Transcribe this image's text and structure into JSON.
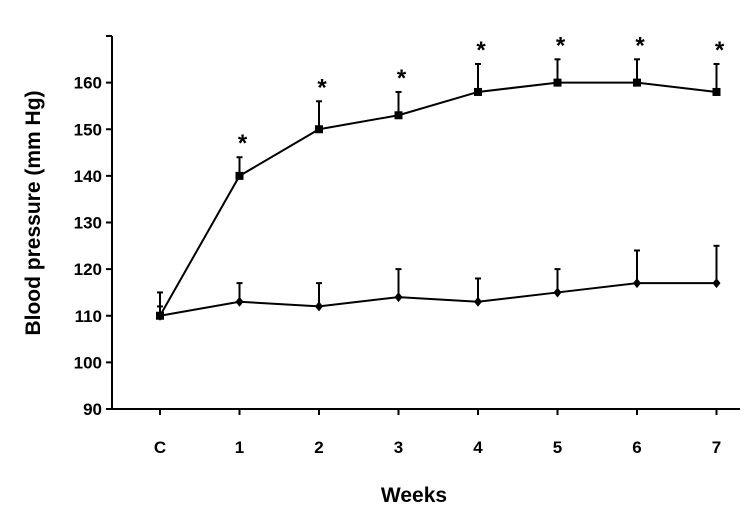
{
  "chart_data": {
    "type": "line",
    "title": "",
    "xlabel": "Weeks",
    "ylabel": "Blood pressure (mm Hg)",
    "categories": [
      "C",
      "1",
      "2",
      "3",
      "4",
      "5",
      "6",
      "7"
    ],
    "ylim": [
      90,
      170
    ],
    "yticks": [
      "90",
      "100",
      "110",
      "120",
      "130",
      "140",
      "150",
      "160"
    ],
    "grid": false,
    "legend": "none",
    "significance_marker": "*",
    "series": [
      {
        "marker": "square",
        "values": [
          110,
          140,
          150,
          153,
          158,
          160,
          160,
          158
        ],
        "error": [
          2,
          4,
          6,
          5,
          6,
          5,
          5,
          6
        ],
        "significant": [
          false,
          true,
          true,
          true,
          true,
          true,
          true,
          true
        ]
      },
      {
        "marker": "diamond",
        "values": [
          110,
          113,
          112,
          114,
          113,
          115,
          117,
          117
        ],
        "error": [
          5,
          4,
          5,
          6,
          5,
          5,
          7,
          8
        ],
        "significant": [
          false,
          false,
          false,
          false,
          false,
          false,
          false,
          false
        ]
      }
    ]
  }
}
